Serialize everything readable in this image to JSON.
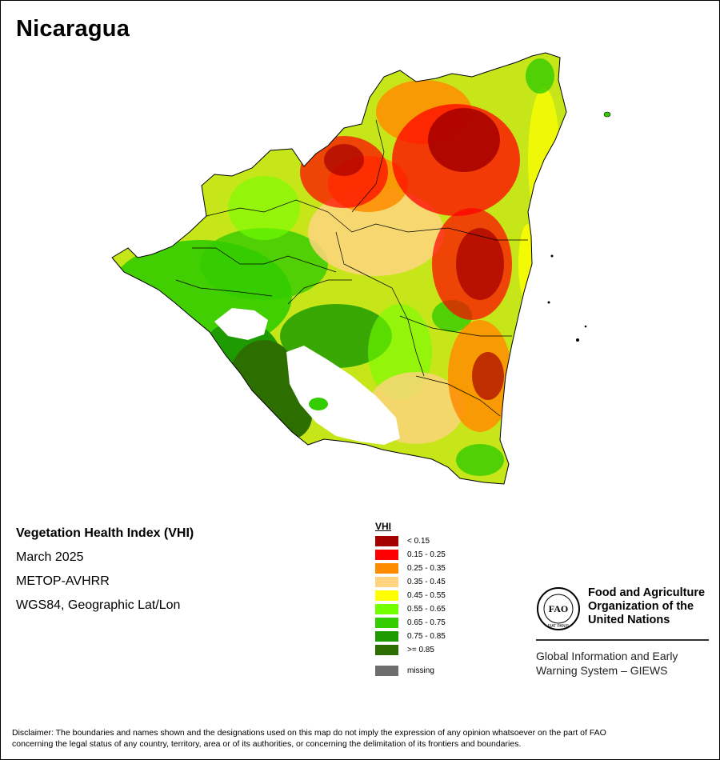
{
  "map": {
    "title": "Nicaragua"
  },
  "info": {
    "product": "Vegetation Health Index (VHI)",
    "period": "March 2025",
    "sensor": "METOP-AVHRR",
    "projection": "WGS84, Geographic Lat/Lon"
  },
  "legend": {
    "title": "VHI",
    "items": [
      {
        "label": "< 0.15",
        "color": "#a50000"
      },
      {
        "label": "0.15 - 0.25",
        "color": "#ff0000"
      },
      {
        "label": "0.25 - 0.35",
        "color": "#ff8c00"
      },
      {
        "label": "0.35 - 0.45",
        "color": "#ffd37f"
      },
      {
        "label": "0.45 - 0.55",
        "color": "#ffff00"
      },
      {
        "label": "0.55 - 0.65",
        "color": "#73ff00"
      },
      {
        "label": "0.65 - 0.75",
        "color": "#33cc00"
      },
      {
        "label": "0.75 - 0.85",
        "color": "#1e9b00"
      },
      {
        "label": ">= 0.85",
        "color": "#2d6e00"
      }
    ],
    "missing": {
      "label": "missing",
      "color": "#6e6e6e"
    }
  },
  "org": {
    "name_line1": "Food and Agriculture",
    "name_line2": "Organization of the",
    "name_line3": "United Nations",
    "logo_text": "FAO",
    "logo_motto": "FIAT PANIS",
    "system_line1": "Global Information and Early",
    "system_line2": "Warning System – GIEWS"
  },
  "disclaimer": {
    "line1": "Disclaimer: The boundaries and names shown and the designations used on this map do not imply the expression of any opinion whatsoever on the part of FAO",
    "line2": "concerning the legal status of any country, territory, area or of its authorities, or concerning the delimitation of its frontiers and boundaries."
  }
}
